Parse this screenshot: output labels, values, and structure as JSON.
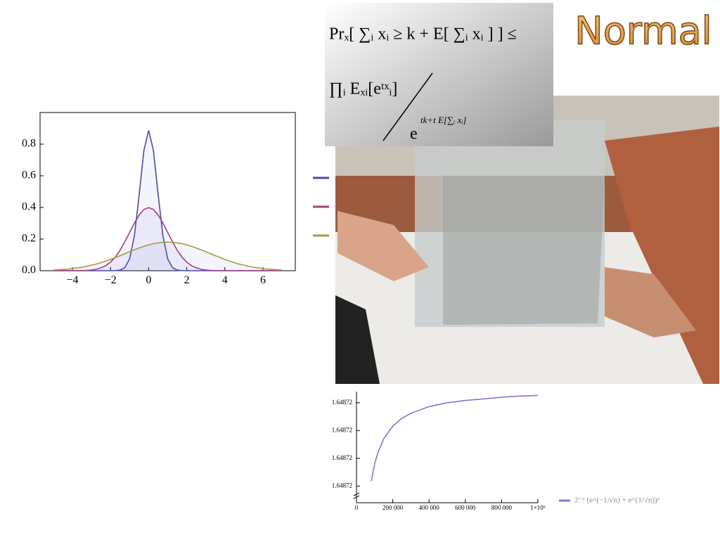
{
  "title": "Normal",
  "formula": {
    "lhs": "Prₓ[ ∑ᵢ xᵢ ≥ k + E[ ∑ᵢ xᵢ ] ] ≤",
    "numerator": "∏ᵢ Eₓᵢ[eᵗˣᵢ]",
    "denominator_base": "e",
    "denominator_exponent": "tk+t E[∑ᵢ xᵢ]"
  },
  "chart_data": [
    {
      "type": "line",
      "filling": true,
      "frame": true,
      "x": [
        -5,
        -4.75,
        -4.5,
        -4.25,
        -4,
        -3.75,
        -3.5,
        -3.25,
        -3,
        -2.75,
        -2.5,
        -2.25,
        -2,
        -1.75,
        -1.5,
        -1.25,
        -1,
        -0.75,
        -0.5,
        -0.25,
        0,
        0.25,
        0.5,
        0.75,
        1,
        1.25,
        1.5,
        1.75,
        2,
        2.25,
        2.5,
        2.75,
        3,
        3.25,
        3.5,
        3.75,
        4,
        4.25,
        4.5,
        4.75,
        5,
        5.25,
        5.5,
        5.75,
        6,
        6.25,
        6.5,
        6.75,
        7
      ],
      "series": [
        {
          "color": "#4b4ba6",
          "values": [
            0,
            0,
            0,
            0,
            0,
            0,
            0,
            0,
            0,
            0,
            0,
            0,
            0,
            0.001,
            0.004,
            0.019,
            0.075,
            0.221,
            0.478,
            0.76,
            0.887,
            0.76,
            0.478,
            0.221,
            0.075,
            0.019,
            0.004,
            0.001,
            0,
            0,
            0,
            0,
            0,
            0,
            0,
            0,
            0,
            0,
            0,
            0,
            0,
            0,
            0,
            0,
            0,
            0,
            0,
            0,
            0
          ]
        },
        {
          "color": "#a0407a",
          "values": [
            0,
            0,
            0,
            0,
            0,
            0,
            0.001,
            0.002,
            0.004,
            0.009,
            0.018,
            0.032,
            0.054,
            0.086,
            0.13,
            0.183,
            0.242,
            0.301,
            0.352,
            0.387,
            0.399,
            0.387,
            0.352,
            0.301,
            0.242,
            0.183,
            0.13,
            0.086,
            0.054,
            0.032,
            0.018,
            0.009,
            0.004,
            0.002,
            0.001,
            0,
            0,
            0,
            0,
            0,
            0,
            0,
            0,
            0,
            0,
            0,
            0,
            0,
            0
          ]
        },
        {
          "color": "#a89a40",
          "values": [
            0.004,
            0.006,
            0.008,
            0.01,
            0.014,
            0.018,
            0.022,
            0.028,
            0.035,
            0.042,
            0.051,
            0.061,
            0.071,
            0.083,
            0.095,
            0.107,
            0.12,
            0.132,
            0.143,
            0.154,
            0.163,
            0.171,
            0.176,
            0.18,
            0.181,
            0.18,
            0.176,
            0.171,
            0.163,
            0.154,
            0.143,
            0.132,
            0.12,
            0.107,
            0.095,
            0.083,
            0.071,
            0.061,
            0.051,
            0.042,
            0.035,
            0.028,
            0.022,
            0.018,
            0.014,
            0.01,
            0.008,
            0.006,
            0.004
          ]
        }
      ],
      "xlim": [
        -5.7,
        7.7
      ],
      "ylim": [
        0,
        1
      ],
      "xticks": [
        {
          "value": -4,
          "label": "−4"
        },
        {
          "value": -2,
          "label": "−2"
        },
        0,
        2,
        4,
        6
      ],
      "yticks": [
        {
          "value": 0,
          "label": "0.0"
        },
        0.2,
        0.4,
        0.6,
        0.8
      ]
    },
    {
      "type": "line",
      "filling": false,
      "frame": false,
      "x": [
        82000,
        100000,
        120000,
        150000,
        200000,
        250000,
        300000,
        400000,
        500000,
        600000,
        700000,
        800000,
        900000,
        1000000
      ],
      "series": [
        {
          "name": "2⁻ⁿ (e^(−1/√n) + e^(1/√n))ⁿ",
          "color": "#7b7bcf",
          "values": [
            1.64871959,
            1.6487199,
            1.64872012,
            1.64872035,
            1.64872058,
            1.64872072,
            1.64872081,
            1.64872093,
            1.648721,
            1.64872104,
            1.64872107,
            1.6487211,
            1.64872112,
            1.64872113
          ]
        }
      ],
      "xlim": [
        0,
        1000000
      ],
      "ylim": [
        1.6487192,
        1.6487212
      ],
      "xticks": [
        0,
        {
          "value": 200000,
          "label": "200 000"
        },
        {
          "value": 400000,
          "label": "400 000"
        },
        {
          "value": 600000,
          "label": "600 000"
        },
        {
          "value": 800000,
          "label": "800 000"
        },
        {
          "value": 1000000,
          "label": "1×10⁶"
        }
      ],
      "yticks": [
        {
          "value": 1.6487195,
          "label": "1.64872"
        },
        1.64872,
        {
          "value": 1.6487205,
          "label": "1.64872"
        },
        {
          "value": 1.648721,
          "label": "1.64872"
        }
      ]
    }
  ]
}
